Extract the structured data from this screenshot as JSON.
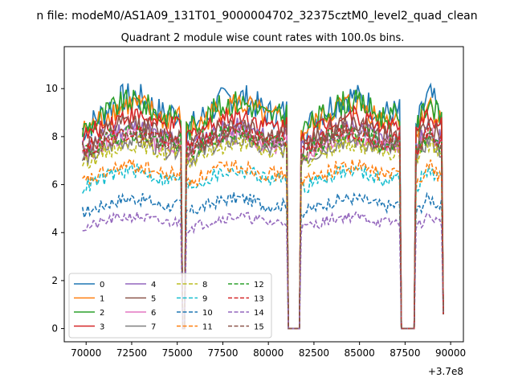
{
  "chart_data": {
    "type": "line",
    "suptitle": "n file: modeM0/AS1A09_131T01_9000004702_32375cztM0_level2_quad_clean",
    "title": "Quadrant 2 module wise count rates with 100.0s bins.",
    "xlabel": "",
    "ylabel": "",
    "x_offset_label": "+3.7e8",
    "xlim": [
      68800,
      90700
    ],
    "ylim": [
      -0.55,
      11.75
    ],
    "x_ticks": [
      70000,
      72500,
      75000,
      77500,
      80000,
      82500,
      85000,
      87500,
      90000
    ],
    "x_tick_labels": [
      "70000",
      "72500",
      "75000",
      "77500",
      "80000",
      "82500",
      "85000",
      "87500",
      "90000"
    ],
    "y_ticks": [
      0,
      2,
      4,
      6,
      8,
      10
    ],
    "y_tick_labels": [
      "0",
      "2",
      "4",
      "6",
      "8",
      "10"
    ],
    "grid": false,
    "legend_placement": "lower-left",
    "legend_columns": 4,
    "time_profile": {
      "segments": [
        [
          69800,
          75200
        ],
        [
          75500,
          81000
        ],
        [
          81800,
          87200
        ],
        [
          88100,
          89600
        ]
      ],
      "gaps_at_zero": [
        [
          75250,
          75450
        ],
        [
          81200,
          81700
        ],
        [
          87300,
          88000
        ]
      ],
      "description_points": "x values sampled every 100 s; rates fall to 0 during gaps"
    },
    "series": [
      {
        "name": "0",
        "color": "#1f77b4",
        "style": "solid",
        "level": 8.9,
        "swing": 1.4
      },
      {
        "name": "1",
        "color": "#ff7f0e",
        "style": "solid",
        "level": 8.7,
        "swing": 1.2
      },
      {
        "name": "2",
        "color": "#2ca02c",
        "style": "solid",
        "level": 8.8,
        "swing": 1.2
      },
      {
        "name": "3",
        "color": "#d62728",
        "style": "solid",
        "level": 8.4,
        "swing": 0.9
      },
      {
        "name": "4",
        "color": "#9467bd",
        "style": "solid",
        "level": 7.9,
        "swing": 0.9
      },
      {
        "name": "5",
        "color": "#8c564b",
        "style": "solid",
        "level": 8.0,
        "swing": 1.0
      },
      {
        "name": "6",
        "color": "#e377c2",
        "style": "solid",
        "level": 7.6,
        "swing": 0.8
      },
      {
        "name": "7",
        "color": "#7f7f7f",
        "style": "solid",
        "level": 7.4,
        "swing": 0.8
      },
      {
        "name": "8",
        "color": "#bcbd22",
        "style": "dashed",
        "level": 7.3,
        "swing": 0.8
      },
      {
        "name": "9",
        "color": "#17becf",
        "style": "dashed",
        "level": 6.2,
        "swing": 0.7
      },
      {
        "name": "10",
        "color": "#1f77b4",
        "style": "dashed",
        "level": 5.1,
        "swing": 0.6
      },
      {
        "name": "11",
        "color": "#ff7f0e",
        "style": "dashed",
        "level": 6.4,
        "swing": 0.7
      },
      {
        "name": "12",
        "color": "#2ca02c",
        "style": "dashed",
        "level": 7.7,
        "swing": 0.9
      },
      {
        "name": "13",
        "color": "#d62728",
        "style": "dashed",
        "level": 7.8,
        "swing": 0.8
      },
      {
        "name": "14",
        "color": "#9467bd",
        "style": "dashed",
        "level": 4.4,
        "swing": 0.5
      },
      {
        "name": "15",
        "color": "#8c564b",
        "style": "dashed",
        "level": 7.7,
        "swing": 0.8
      }
    ]
  }
}
